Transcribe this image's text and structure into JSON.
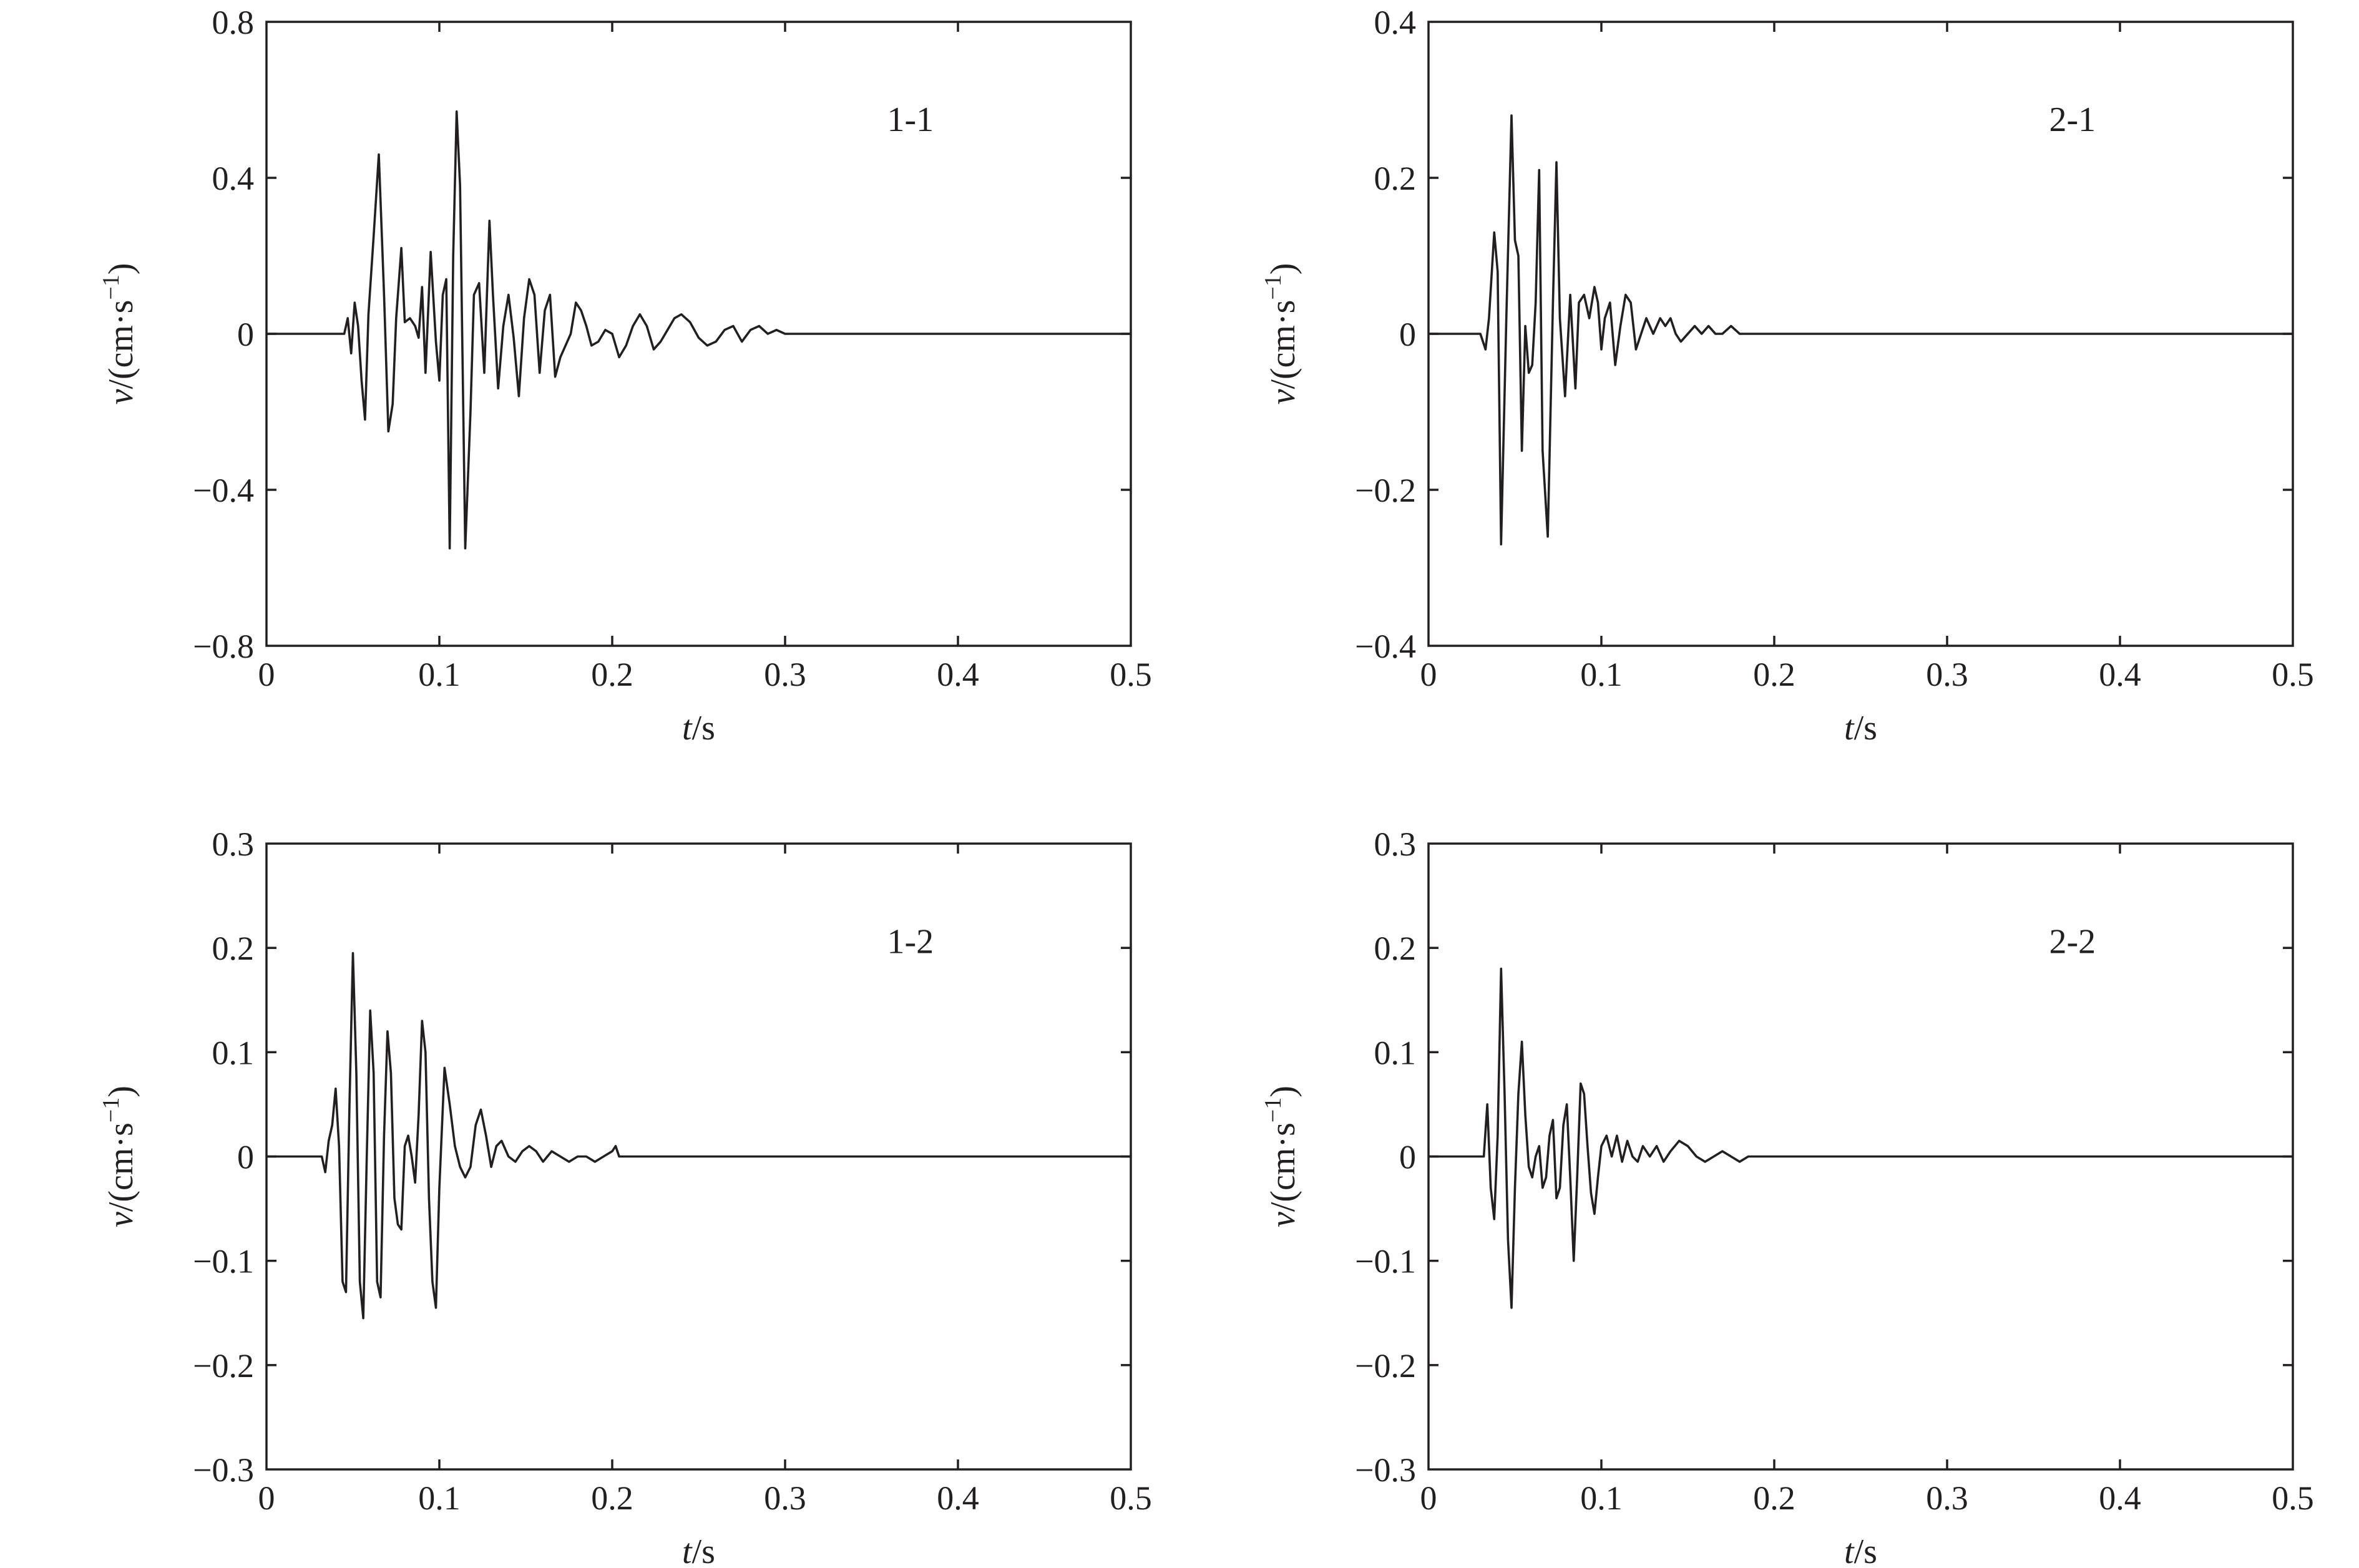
{
  "chart_data": [
    {
      "type": "line",
      "panel_label": "1-1",
      "xlabel": {
        "var": "t",
        "unit": "/s"
      },
      "ylabel": {
        "var": "v",
        "unit": "/(cm·s",
        "exp": "−1",
        "close": ")"
      },
      "xlim": [
        0,
        0.5
      ],
      "ylim": [
        -0.8,
        0.8
      ],
      "xticks": [
        "0",
        "0.1",
        "0.2",
        "0.3",
        "0.4",
        "0.5"
      ],
      "xtick_values": [
        0,
        0.1,
        0.2,
        0.3,
        0.4,
        0.5
      ],
      "yticks": [
        "−0.8",
        "−0.4",
        "0",
        "0.4",
        "0.8"
      ],
      "ytick_values": [
        -0.8,
        -0.4,
        0,
        0.4,
        0.8
      ],
      "series": [
        {
          "x": [
            0,
            0.045,
            0.047,
            0.049,
            0.051,
            0.053,
            0.055,
            0.057,
            0.059,
            0.062,
            0.065,
            0.068,
            0.0705,
            0.073,
            0.075,
            0.078,
            0.08,
            0.083,
            0.086,
            0.088,
            0.09,
            0.092,
            0.095,
            0.098,
            0.1,
            0.102,
            0.104,
            0.106,
            0.108,
            0.11,
            0.112,
            0.115,
            0.118,
            0.12,
            0.123,
            0.126,
            0.129,
            0.131,
            0.134,
            0.137,
            0.14,
            0.143,
            0.146,
            0.149,
            0.152,
            0.155,
            0.158,
            0.161,
            0.164,
            0.167,
            0.17,
            0.173,
            0.176,
            0.179,
            0.182,
            0.185,
            0.188,
            0.192,
            0.196,
            0.2,
            0.204,
            0.208,
            0.212,
            0.216,
            0.22,
            0.224,
            0.228,
            0.232,
            0.236,
            0.24,
            0.245,
            0.25,
            0.255,
            0.26,
            0.265,
            0.27,
            0.275,
            0.28,
            0.285,
            0.29,
            0.295,
            0.3,
            0.305,
            0.31,
            0.35,
            0.4,
            0.45,
            0.5
          ],
          "y": [
            0,
            0,
            0.04,
            -0.05,
            0.08,
            0.02,
            -0.12,
            -0.22,
            0.05,
            0.25,
            0.46,
            0.1,
            -0.25,
            -0.18,
            0.04,
            0.22,
            0.03,
            0.04,
            0.02,
            -0.01,
            0.12,
            -0.1,
            0.21,
            -0.02,
            -0.12,
            0.1,
            0.14,
            -0.55,
            0.2,
            0.57,
            0.38,
            -0.55,
            -0.2,
            0.1,
            0.13,
            -0.1,
            0.29,
            0.1,
            -0.14,
            0.02,
            0.1,
            -0.01,
            -0.16,
            0.04,
            0.14,
            0.1,
            -0.1,
            0.06,
            0.1,
            -0.11,
            -0.06,
            -0.03,
            0.0,
            0.08,
            0.06,
            0.02,
            -0.03,
            -0.02,
            0.01,
            0.0,
            -0.06,
            -0.03,
            0.02,
            0.05,
            0.02,
            -0.04,
            -0.02,
            0.01,
            0.04,
            0.05,
            0.03,
            -0.01,
            -0.03,
            -0.02,
            0.01,
            0.02,
            -0.02,
            0.01,
            0.02,
            0.0,
            0.01,
            0.0,
            0,
            0,
            0,
            0,
            0,
            0
          ]
        }
      ]
    },
    {
      "type": "line",
      "panel_label": "2-1",
      "xlabel": {
        "var": "t",
        "unit": "/s"
      },
      "ylabel": {
        "var": "v",
        "unit": "/(cm·s",
        "exp": "−1",
        "close": ")"
      },
      "xlim": [
        0,
        0.5
      ],
      "ylim": [
        -0.4,
        0.4
      ],
      "xticks": [
        "0",
        "0.1",
        "0.2",
        "0.3",
        "0.4",
        "0.5"
      ],
      "xtick_values": [
        0,
        0.1,
        0.2,
        0.3,
        0.4,
        0.5
      ],
      "yticks": [
        "−0.4",
        "−0.2",
        "0",
        "0.2",
        "0.4"
      ],
      "ytick_values": [
        -0.4,
        -0.2,
        0,
        0.2,
        0.4
      ],
      "series": [
        {
          "x": [
            0,
            0.03,
            0.033,
            0.035,
            0.038,
            0.04,
            0.042,
            0.045,
            0.048,
            0.05,
            0.052,
            0.054,
            0.056,
            0.058,
            0.06,
            0.062,
            0.064,
            0.066,
            0.069,
            0.072,
            0.074,
            0.076,
            0.079,
            0.082,
            0.085,
            0.087,
            0.09,
            0.093,
            0.096,
            0.098,
            0.1,
            0.102,
            0.105,
            0.108,
            0.111,
            0.114,
            0.117,
            0.12,
            0.123,
            0.126,
            0.13,
            0.134,
            0.137,
            0.14,
            0.143,
            0.146,
            0.15,
            0.154,
            0.158,
            0.162,
            0.166,
            0.17,
            0.175,
            0.18,
            0.185,
            0.19,
            0.195,
            0.2,
            0.205,
            0.21,
            0.215,
            0.22,
            0.3,
            0.4,
            0.5
          ],
          "y": [
            0,
            0.0,
            -0.02,
            0.02,
            0.13,
            0.08,
            -0.27,
            0.02,
            0.28,
            0.12,
            0.1,
            -0.15,
            0.01,
            -0.05,
            -0.04,
            0.04,
            0.21,
            -0.15,
            -0.26,
            0.04,
            0.22,
            0.02,
            -0.08,
            0.05,
            -0.07,
            0.04,
            0.05,
            0.02,
            0.06,
            0.04,
            -0.02,
            0.02,
            0.04,
            -0.04,
            0.01,
            0.05,
            0.04,
            -0.02,
            0.0,
            0.02,
            0.0,
            0.02,
            0.01,
            0.02,
            0.0,
            -0.01,
            0.0,
            0.01,
            0.0,
            0.01,
            0.0,
            0.0,
            0.01,
            0.0,
            0.0,
            0.0,
            0.0,
            0.0,
            0.0,
            0.0,
            0.0,
            0,
            0,
            0,
            0
          ]
        }
      ]
    },
    {
      "type": "line",
      "panel_label": "1-2",
      "xlabel": {
        "var": "t",
        "unit": "/s"
      },
      "ylabel": {
        "var": "v",
        "unit": "/(cm·s",
        "exp": "−1",
        "close": ")"
      },
      "xlim": [
        0,
        0.5
      ],
      "ylim": [
        -0.3,
        0.3
      ],
      "xticks": [
        "0",
        "0.1",
        "0.2",
        "0.3",
        "0.4",
        "0.5"
      ],
      "xtick_values": [
        0,
        0.1,
        0.2,
        0.3,
        0.4,
        0.5
      ],
      "yticks": [
        "−0.3",
        "−0.2",
        "−0.1",
        "0",
        "0.1",
        "0.2",
        "0.3"
      ],
      "ytick_values": [
        -0.3,
        -0.2,
        -0.1,
        0,
        0.1,
        0.2,
        0.3
      ],
      "series": [
        {
          "x": [
            0,
            0.032,
            0.034,
            0.036,
            0.038,
            0.04,
            0.042,
            0.044,
            0.046,
            0.048,
            0.05,
            0.052,
            0.054,
            0.056,
            0.058,
            0.06,
            0.062,
            0.064,
            0.066,
            0.068,
            0.07,
            0.072,
            0.074,
            0.076,
            0.078,
            0.08,
            0.082,
            0.084,
            0.086,
            0.088,
            0.09,
            0.092,
            0.094,
            0.096,
            0.098,
            0.1,
            0.103,
            0.106,
            0.109,
            0.112,
            0.115,
            0.118,
            0.121,
            0.124,
            0.127,
            0.13,
            0.133,
            0.136,
            0.14,
            0.144,
            0.148,
            0.152,
            0.156,
            0.16,
            0.165,
            0.17,
            0.175,
            0.18,
            0.185,
            0.19,
            0.195,
            0.2,
            0.202,
            0.204,
            0.21,
            0.25,
            0.3,
            0.35,
            0.4,
            0.45,
            0.5
          ],
          "y": [
            0,
            0.0,
            -0.015,
            0.015,
            0.03,
            0.065,
            0.01,
            -0.12,
            -0.13,
            0.05,
            0.195,
            0.08,
            -0.12,
            -0.155,
            0.0,
            0.14,
            0.08,
            -0.12,
            -0.135,
            0.02,
            0.12,
            0.08,
            -0.04,
            -0.065,
            -0.07,
            0.01,
            0.02,
            0.0,
            -0.025,
            0.04,
            0.13,
            0.1,
            -0.04,
            -0.12,
            -0.145,
            -0.03,
            0.085,
            0.05,
            0.01,
            -0.01,
            -0.02,
            -0.01,
            0.03,
            0.045,
            0.02,
            -0.01,
            0.01,
            0.015,
            0.0,
            -0.005,
            0.005,
            0.01,
            0.005,
            -0.005,
            0.005,
            0.0,
            -0.005,
            0.0,
            0.0,
            -0.005,
            0.0,
            0.005,
            0.01,
            0.0,
            0.0,
            0.0,
            0.0,
            0.0,
            0.0,
            0.0,
            0.0
          ]
        }
      ]
    },
    {
      "type": "line",
      "panel_label": "2-2",
      "xlabel": {
        "var": "t",
        "unit": "/s"
      },
      "ylabel": {
        "var": "v",
        "unit": "/(cm·s",
        "exp": "−1",
        "close": ")"
      },
      "xlim": [
        0,
        0.5
      ],
      "ylim": [
        -0.3,
        0.3
      ],
      "xticks": [
        "0",
        "0.1",
        "0.2",
        "0.3",
        "0.4",
        "0.5"
      ],
      "xtick_values": [
        0,
        0.1,
        0.2,
        0.3,
        0.4,
        0.5
      ],
      "yticks": [
        "−0.3",
        "−0.2",
        "−0.1",
        "0",
        "0.1",
        "0.2",
        "0.3"
      ],
      "ytick_values": [
        -0.3,
        -0.2,
        -0.1,
        0,
        0.1,
        0.2,
        0.3
      ],
      "series": [
        {
          "x": [
            0,
            0.032,
            0.034,
            0.036,
            0.038,
            0.04,
            0.042,
            0.044,
            0.046,
            0.048,
            0.05,
            0.052,
            0.054,
            0.056,
            0.058,
            0.06,
            0.062,
            0.064,
            0.066,
            0.068,
            0.07,
            0.072,
            0.074,
            0.076,
            0.078,
            0.08,
            0.082,
            0.084,
            0.086,
            0.088,
            0.09,
            0.092,
            0.094,
            0.096,
            0.098,
            0.1,
            0.103,
            0.106,
            0.109,
            0.112,
            0.115,
            0.118,
            0.121,
            0.124,
            0.128,
            0.132,
            0.136,
            0.14,
            0.145,
            0.15,
            0.155,
            0.16,
            0.165,
            0.17,
            0.175,
            0.18,
            0.185,
            0.19,
            0.2,
            0.25,
            0.3,
            0.35,
            0.4,
            0.45,
            0.5
          ],
          "y": [
            0,
            0.0,
            0.05,
            -0.03,
            -0.06,
            0.02,
            0.18,
            0.06,
            -0.08,
            -0.145,
            -0.03,
            0.06,
            0.11,
            0.04,
            -0.01,
            -0.02,
            0.0,
            0.01,
            -0.03,
            -0.02,
            0.02,
            0.035,
            -0.04,
            -0.03,
            0.03,
            0.05,
            -0.02,
            -0.1,
            -0.02,
            0.07,
            0.06,
            0.01,
            -0.035,
            -0.055,
            -0.02,
            0.01,
            0.02,
            0.0,
            0.02,
            -0.005,
            0.015,
            0.0,
            -0.005,
            0.01,
            0.0,
            0.01,
            -0.005,
            0.005,
            0.015,
            0.01,
            0.0,
            -0.005,
            0.0,
            0.005,
            0.0,
            -0.005,
            0.0,
            0.0,
            0.0,
            0.0,
            0.0,
            0.0,
            0.0,
            0.0,
            0.0
          ]
        }
      ]
    }
  ]
}
